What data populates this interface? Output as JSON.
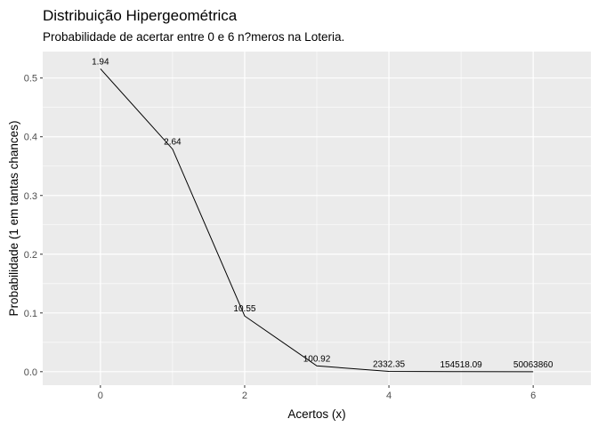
{
  "chart_data": {
    "type": "line",
    "title": "Distribuição Hipergeométrica",
    "subtitle": "Probabilidade de acertar entre 0 e 6 n?meros na Loteria.",
    "xlabel": "Acertos (x)",
    "ylabel": "Probabilidade (1 em tantas chances)",
    "xlim": [
      -0.8,
      6.8
    ],
    "ylim": [
      -0.023,
      0.545
    ],
    "x_ticks": [
      0,
      2,
      4,
      6
    ],
    "y_ticks": [
      0.0,
      0.1,
      0.2,
      0.3,
      0.4,
      0.5
    ],
    "x_tick_labels": [
      "0",
      "2",
      "4",
      "6"
    ],
    "y_tick_labels": [
      "0.0",
      "0.1",
      "0.2",
      "0.3",
      "0.4",
      "0.5"
    ],
    "grid": true,
    "panel_background": "#ebebeb",
    "grid_color": "#ffffff",
    "line_color": "#000000",
    "series": [
      {
        "x": [
          0,
          1,
          2,
          3,
          4,
          5,
          6
        ],
        "y": [
          0.5157,
          0.379,
          0.0948,
          0.0099,
          0.0004,
          6.5e-06,
          2e-08
        ],
        "labels": [
          "1.94",
          "2.64",
          "10.55",
          "100.92",
          "2332.35",
          "154518.09",
          "50063860"
        ]
      }
    ]
  }
}
